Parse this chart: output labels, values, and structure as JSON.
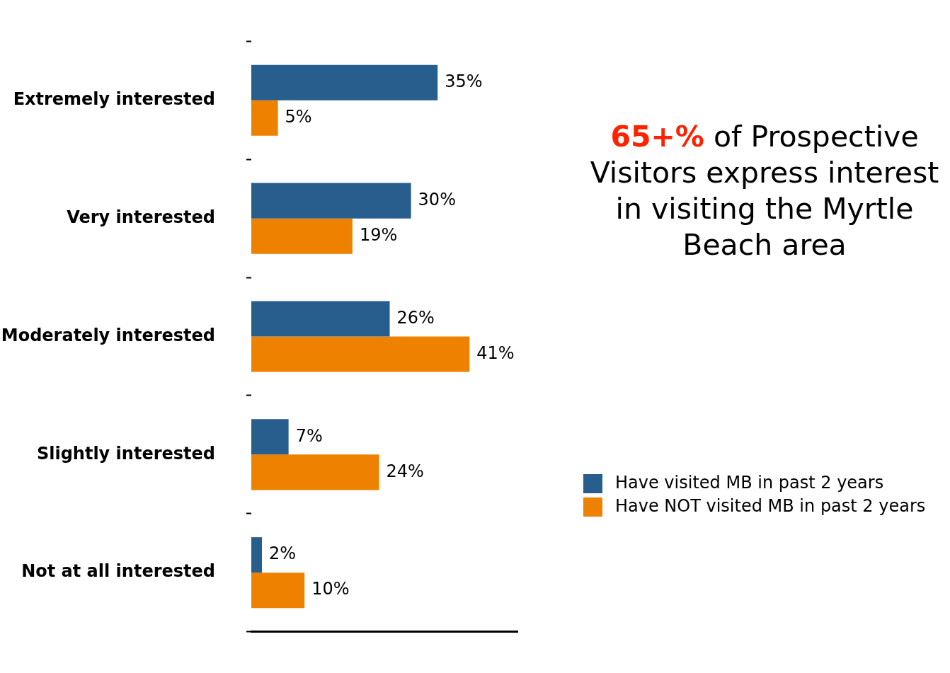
{
  "chart_data": {
    "type": "bar",
    "orientation": "horizontal",
    "categories": [
      "Extremely interested",
      "Very interested",
      "Moderately interested",
      "Slightly interested",
      "Not at all interested"
    ],
    "series": [
      {
        "name": "Have visited MB in past 2 years",
        "color": "#285e8e",
        "values": [
          35,
          30,
          26,
          7,
          2
        ],
        "value_labels": [
          "35%",
          "30%",
          "26%",
          "7%",
          "2%"
        ]
      },
      {
        "name": "Have NOT visited MB in past 2 years",
        "color": "#ee8100",
        "values": [
          5,
          19,
          41,
          24,
          10
        ],
        "value_labels": [
          "5%",
          "19%",
          "41%",
          "24%",
          "10%"
        ]
      }
    ],
    "xlim": [
      0,
      50
    ],
    "tick_labels": "y",
    "grid": false,
    "legend": "right",
    "annotations": [
      "65+%",
      "of Prospective Visitors express interest in visiting the Myrtle Beach area"
    ]
  }
}
